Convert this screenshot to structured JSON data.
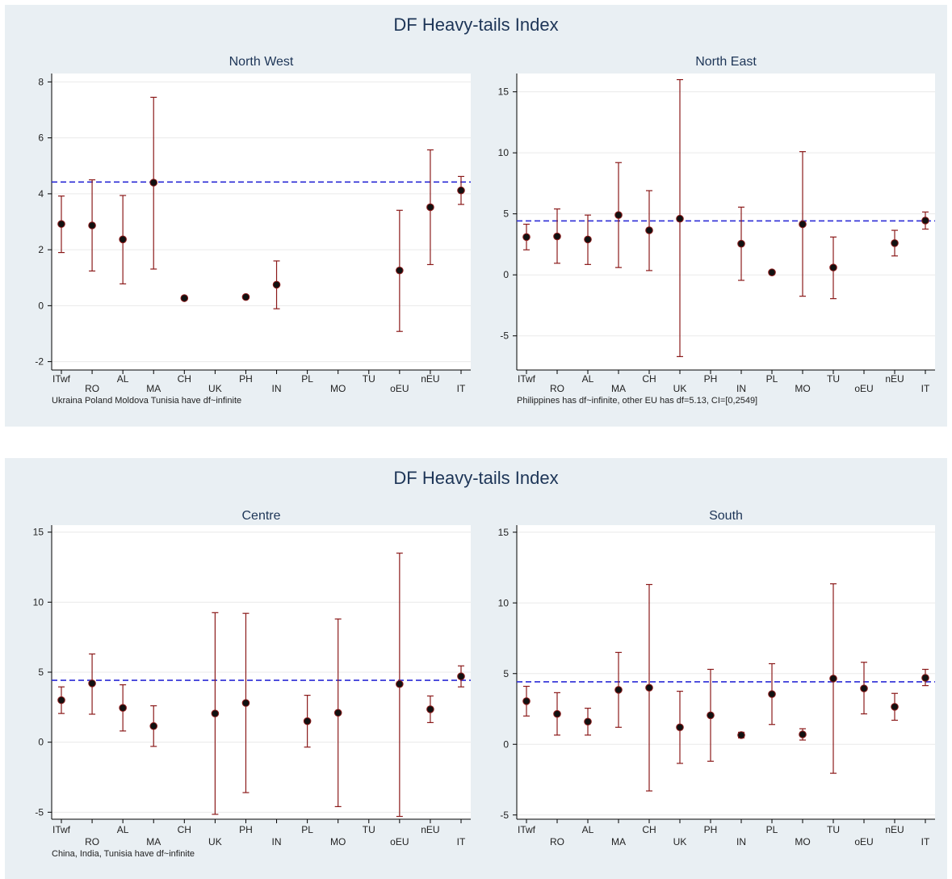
{
  "panels": [
    {
      "title": "DF Heavy-tails Index",
      "charts": [
        {
          "type": "scatter",
          "title": "North West",
          "note": "Ukraina Poland Moldova Tunisia have df~infinite",
          "ylim": [
            -2.3,
            8.3
          ],
          "yticks": [
            -2,
            0,
            2,
            4,
            6,
            8
          ],
          "categories": [
            "ITwf",
            "RO",
            "AL",
            "MA",
            "CH",
            "UK",
            "PH",
            "IN",
            "PL",
            "MO",
            "TU",
            "oEU",
            "nEU",
            "IT"
          ],
          "reference_line": 4.42,
          "points": [
            {
              "x": "ITwf",
              "y": 2.92,
              "low": 1.9,
              "high": 3.92
            },
            {
              "x": "RO",
              "y": 2.87,
              "low": 1.24,
              "high": 4.5
            },
            {
              "x": "AL",
              "y": 2.37,
              "low": 0.78,
              "high": 3.94
            },
            {
              "x": "MA",
              "y": 4.4,
              "low": 1.31,
              "high": 7.45
            },
            {
              "x": "CH",
              "y": 0.27,
              "low": 0.27,
              "high": 0.27
            },
            {
              "x": "PH",
              "y": 0.31,
              "low": 0.31,
              "high": 0.31
            },
            {
              "x": "IN",
              "y": 0.75,
              "low": -0.11,
              "high": 1.6
            },
            {
              "x": "oEU",
              "y": 1.26,
              "low": -0.92,
              "high": 3.41
            },
            {
              "x": "nEU",
              "y": 3.52,
              "low": 1.47,
              "high": 5.57
            },
            {
              "x": "IT",
              "y": 4.12,
              "low": 3.62,
              "high": 4.62
            }
          ]
        },
        {
          "type": "scatter",
          "title": "North East",
          "note": "Philippines has df~infinite, other EU has df=5.13, CI=[0,2549]",
          "ylim": [
            -7.8,
            16.5
          ],
          "yticks": [
            -5,
            0,
            5,
            10,
            15
          ],
          "categories": [
            "ITwf",
            "RO",
            "AL",
            "MA",
            "CH",
            "UK",
            "PH",
            "IN",
            "PL",
            "MO",
            "TU",
            "oEU",
            "nEU",
            "IT"
          ],
          "reference_line": 4.42,
          "points": [
            {
              "x": "ITwf",
              "y": 3.1,
              "low": 2.05,
              "high": 4.15
            },
            {
              "x": "RO",
              "y": 3.15,
              "low": 0.95,
              "high": 5.4
            },
            {
              "x": "AL",
              "y": 2.9,
              "low": 0.85,
              "high": 4.9
            },
            {
              "x": "MA",
              "y": 4.9,
              "low": 0.6,
              "high": 9.2
            },
            {
              "x": "CH",
              "y": 3.65,
              "low": 0.35,
              "high": 6.9
            },
            {
              "x": "UK",
              "y": 4.6,
              "low": -6.7,
              "high": 16.0
            },
            {
              "x": "IN",
              "y": 2.55,
              "low": -0.45,
              "high": 5.55
            },
            {
              "x": "PL",
              "y": 0.2,
              "low": 0.2,
              "high": 0.2
            },
            {
              "x": "MO",
              "y": 4.15,
              "low": -1.75,
              "high": 10.1
            },
            {
              "x": "TU",
              "y": 0.6,
              "low": -1.95,
              "high": 3.1
            },
            {
              "x": "nEU",
              "y": 2.6,
              "low": 1.55,
              "high": 3.65
            },
            {
              "x": "IT",
              "y": 4.45,
              "low": 3.75,
              "high": 5.15
            }
          ]
        }
      ]
    },
    {
      "title": "DF Heavy-tails Index",
      "charts": [
        {
          "type": "scatter",
          "title": "Centre",
          "note": "China, India, Tunisia have df~infinite",
          "ylim": [
            -5.5,
            15.5
          ],
          "yticks": [
            -5,
            0,
            5,
            10,
            15
          ],
          "categories": [
            "ITwf",
            "RO",
            "AL",
            "MA",
            "CH",
            "UK",
            "PH",
            "IN",
            "PL",
            "MO",
            "TU",
            "oEU",
            "nEU",
            "IT"
          ],
          "reference_line": 4.42,
          "points": [
            {
              "x": "ITwf",
              "y": 3.0,
              "low": 2.05,
              "high": 3.95
            },
            {
              "x": "RO",
              "y": 4.2,
              "low": 2.0,
              "high": 6.3
            },
            {
              "x": "AL",
              "y": 2.45,
              "low": 0.8,
              "high": 4.1
            },
            {
              "x": "MA",
              "y": 1.15,
              "low": -0.3,
              "high": 2.6
            },
            {
              "x": "UK",
              "y": 2.05,
              "low": -5.15,
              "high": 9.25
            },
            {
              "x": "PH",
              "y": 2.8,
              "low": -3.6,
              "high": 9.2
            },
            {
              "x": "PL",
              "y": 1.5,
              "low": -0.35,
              "high": 3.35
            },
            {
              "x": "MO",
              "y": 2.1,
              "low": -4.6,
              "high": 8.8
            },
            {
              "x": "oEU",
              "y": 4.15,
              "low": -5.3,
              "high": 13.5
            },
            {
              "x": "nEU",
              "y": 2.35,
              "low": 1.4,
              "high": 3.3
            },
            {
              "x": "IT",
              "y": 4.7,
              "low": 3.95,
              "high": 5.45
            }
          ]
        },
        {
          "type": "scatter",
          "title": "South",
          "note": "",
          "ylim": [
            -5.3,
            15.5
          ],
          "yticks": [
            -5,
            0,
            5,
            10,
            15
          ],
          "categories": [
            "ITwf",
            "RO",
            "AL",
            "MA",
            "CH",
            "UK",
            "PH",
            "IN",
            "PL",
            "MO",
            "TU",
            "oEU",
            "nEU",
            "IT"
          ],
          "reference_line": 4.42,
          "points": [
            {
              "x": "ITwf",
              "y": 3.05,
              "low": 2.0,
              "high": 4.1
            },
            {
              "x": "RO",
              "y": 2.15,
              "low": 0.65,
              "high": 3.65
            },
            {
              "x": "AL",
              "y": 1.6,
              "low": 0.65,
              "high": 2.55
            },
            {
              "x": "MA",
              "y": 3.85,
              "low": 1.2,
              "high": 6.5
            },
            {
              "x": "CH",
              "y": 4.0,
              "low": -3.3,
              "high": 11.3
            },
            {
              "x": "UK",
              "y": 1.2,
              "low": -1.35,
              "high": 3.75
            },
            {
              "x": "PH",
              "y": 2.05,
              "low": -1.2,
              "high": 5.3
            },
            {
              "x": "IN",
              "y": 0.65,
              "low": 0.45,
              "high": 0.85
            },
            {
              "x": "PL",
              "y": 3.55,
              "low": 1.4,
              "high": 5.7
            },
            {
              "x": "MO",
              "y": 0.7,
              "low": 0.3,
              "high": 1.1
            },
            {
              "x": "TU",
              "y": 4.65,
              "low": -2.05,
              "high": 11.35
            },
            {
              "x": "oEU",
              "y": 3.95,
              "low": 2.15,
              "high": 5.8
            },
            {
              "x": "nEU",
              "y": 2.65,
              "low": 1.7,
              "high": 3.6
            },
            {
              "x": "IT",
              "y": 4.7,
              "low": 4.15,
              "high": 5.3
            }
          ]
        }
      ]
    }
  ]
}
